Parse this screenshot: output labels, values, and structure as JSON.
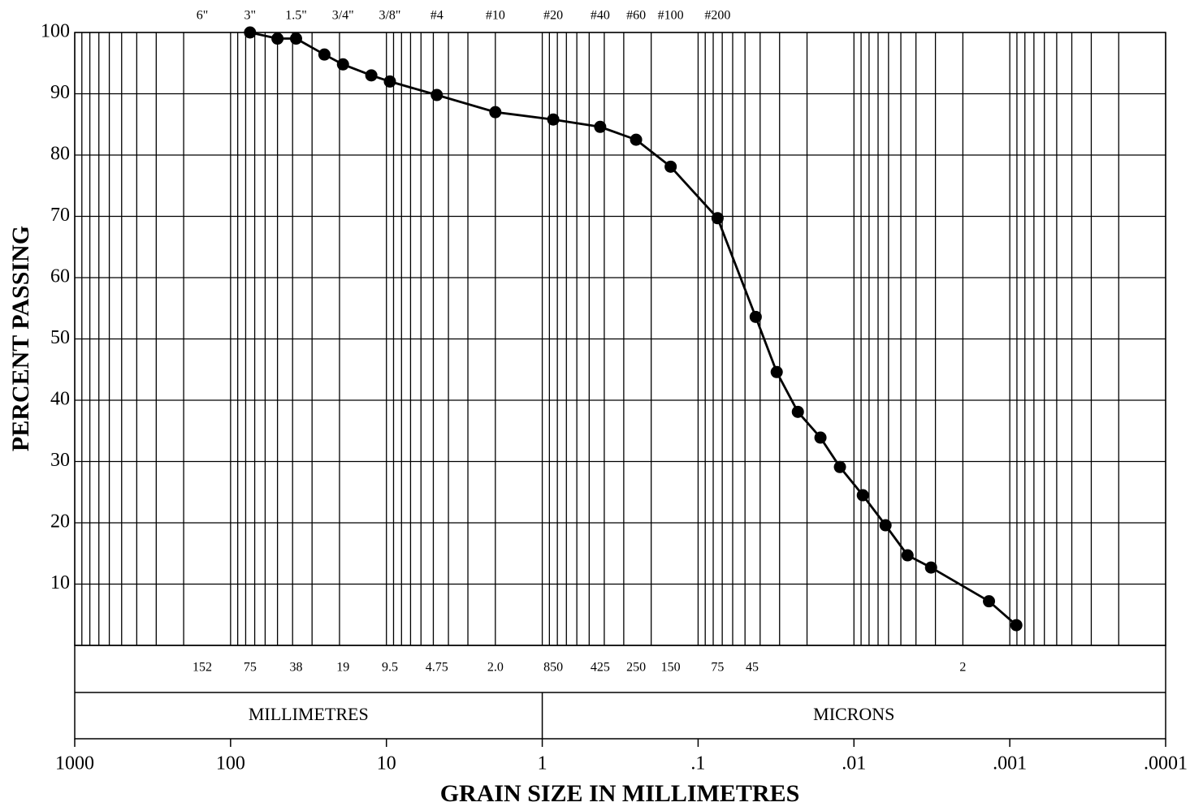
{
  "chart_data": {
    "type": "line",
    "x_label": "GRAIN SIZE IN MILLIMETRES",
    "y_label": "PERCENT PASSING",
    "xlog": true,
    "grid": true,
    "xlim": [
      1000,
      0.0001
    ],
    "ylim": [
      0,
      100
    ],
    "xticks": [
      1000,
      100,
      10,
      1,
      {
        "value": 0.1,
        "label": ".1"
      },
      {
        "value": 0.01,
        "label": ".01"
      },
      {
        "value": 0.001,
        "label": ".001"
      },
      {
        "value": 0.0001,
        "label": ".0001"
      }
    ],
    "yticks": [
      10,
      20,
      30,
      40,
      50,
      60,
      70,
      80,
      90,
      100
    ],
    "sieves": [
      {
        "value": 152,
        "label": "6\""
      },
      {
        "value": 75,
        "label": "3\""
      },
      {
        "value": 38,
        "label": "1.5\""
      },
      {
        "value": 19,
        "label": "3/4\""
      },
      {
        "value": 9.5,
        "label": "3/8\""
      },
      {
        "value": 4.75,
        "label": "#4"
      },
      {
        "value": 2.0,
        "label": "#10"
      },
      {
        "value": 0.85,
        "label": "#20"
      },
      {
        "value": 0.425,
        "label": "#40"
      },
      {
        "value": 0.25,
        "label": "#60"
      },
      {
        "value": 0.15,
        "label": "#100"
      },
      {
        "value": 0.075,
        "label": "#200"
      }
    ],
    "size_labels": [
      {
        "value": 152,
        "label": "152"
      },
      {
        "value": 75,
        "label": "75"
      },
      {
        "value": 38,
        "label": "38"
      },
      {
        "value": 19,
        "label": "19"
      },
      {
        "value": 9.5,
        "label": "9.5"
      },
      {
        "value": 4.75,
        "label": "4.75"
      },
      {
        "value": 2.0,
        "label": "2.0"
      },
      {
        "value": 0.85,
        "label": "850"
      },
      {
        "value": 0.425,
        "label": "425"
      },
      {
        "value": 0.25,
        "label": "250"
      },
      {
        "value": 0.15,
        "label": "150"
      },
      {
        "value": 0.075,
        "label": "75"
      },
      {
        "value": 0.045,
        "label": "45"
      },
      {
        "value": 0.002,
        "label": "2"
      }
    ],
    "units": [
      "MILLIMETRES",
      "MICRONS"
    ],
    "x": [
      75,
      50,
      38,
      25,
      19,
      12.5,
      9.5,
      4.75,
      2.0,
      0.85,
      0.425,
      0.25,
      0.15,
      0.075,
      0.0427,
      0.0313,
      0.0229,
      0.0164,
      0.0123,
      0.00877,
      0.00627,
      0.00453,
      0.0032,
      0.00136,
      0.000908
    ],
    "series": [
      {
        "color": "#000000",
        "values": [
          100,
          99,
          99,
          96.4,
          94.8,
          93,
          92,
          89.8,
          87,
          85.8,
          84.6,
          82.5,
          78.1,
          69.7,
          53.6,
          44.6,
          38.1,
          33.9,
          29.1,
          24.5,
          19.6,
          14.7,
          12.7,
          7.2,
          3.3
        ]
      }
    ]
  }
}
